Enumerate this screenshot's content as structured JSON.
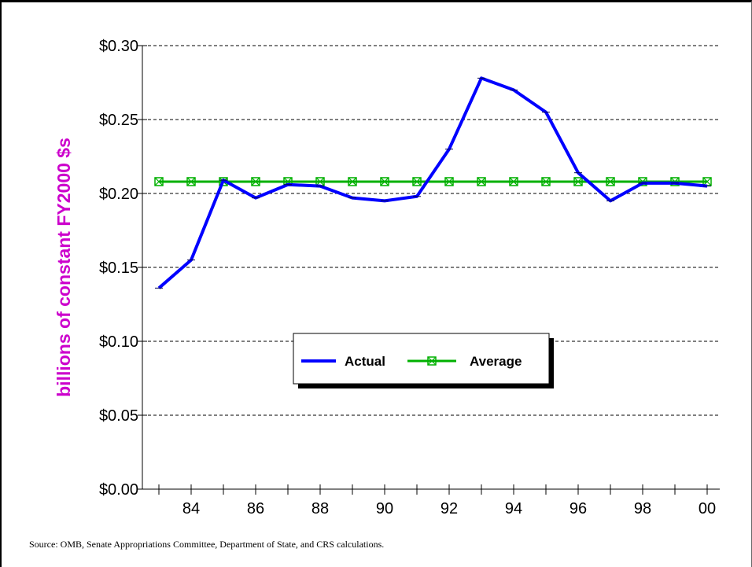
{
  "chart_data": {
    "type": "line",
    "ylabel": "billions of constant FY2000 $s",
    "xlabel": "",
    "title": "",
    "y_ticks": [
      "$0.00",
      "$0.05",
      "$0.10",
      "$0.15",
      "$0.20",
      "$0.25",
      "$0.30"
    ],
    "y_tick_values": [
      0,
      0.05,
      0.1,
      0.15,
      0.2,
      0.25,
      0.3
    ],
    "ylim": [
      0,
      0.3
    ],
    "x_tick_labels": [
      "84",
      "86",
      "88",
      "90",
      "92",
      "94",
      "96",
      "98",
      "00"
    ],
    "x": [
      1983,
      1984,
      1985,
      1986,
      1987,
      1988,
      1989,
      1990,
      1991,
      1992,
      1993,
      1994,
      1995,
      1996,
      1997,
      1998,
      1999,
      2000
    ],
    "grid": "horizontal dashed",
    "legend_position": "center",
    "series": [
      {
        "name": "Actual",
        "color": "#0000ff",
        "marker": "dash",
        "values": [
          0.136,
          0.155,
          0.209,
          0.197,
          0.206,
          0.205,
          0.197,
          0.195,
          0.198,
          0.23,
          0.278,
          0.27,
          0.255,
          0.214,
          0.195,
          0.207,
          0.207,
          0.205
        ]
      },
      {
        "name": "Average",
        "color": "#00b000",
        "marker": "square-x",
        "values": [
          0.208,
          0.208,
          0.208,
          0.208,
          0.208,
          0.208,
          0.208,
          0.208,
          0.208,
          0.208,
          0.208,
          0.208,
          0.208,
          0.208,
          0.208,
          0.208,
          0.208,
          0.208
        ]
      }
    ]
  },
  "source_note": "Source: OMB, Senate Appropriations Committee, Department of State,  and CRS calculations."
}
